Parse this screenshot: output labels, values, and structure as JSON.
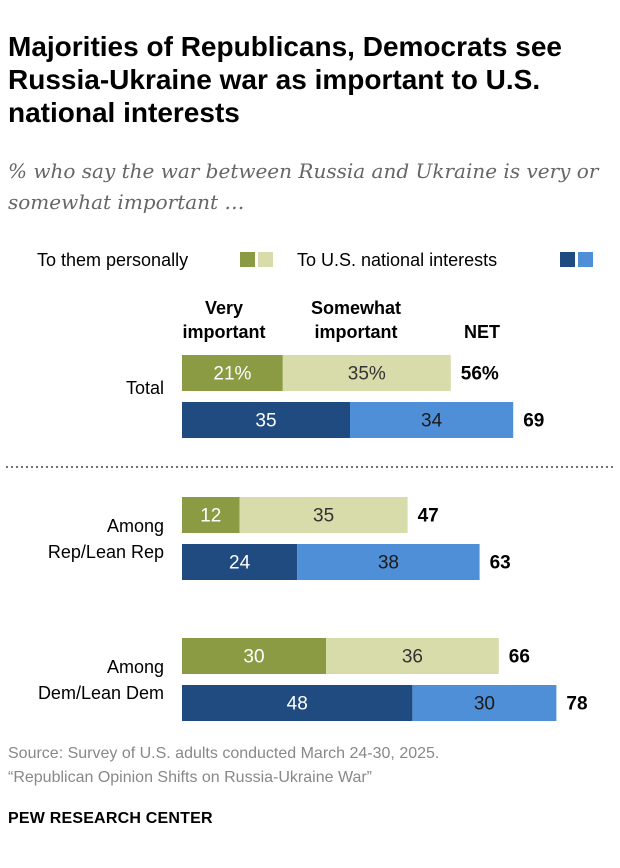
{
  "title": "Majorities of Republicans, Democrats see Russia-Ukraine war as important to U.S. national interests",
  "subtitle": "% who say the war between Russia and Ukraine is very or somewhat important …",
  "legend": {
    "personal_label": "To them personally",
    "national_label": "To U.S. national interests"
  },
  "column_headers": {
    "very_line1": "Very",
    "very_line2": "important",
    "somewhat_line1": "Somewhat",
    "somewhat_line2": "important",
    "net": "NET"
  },
  "colors": {
    "personal_very": "#8b9b44",
    "personal_somewhat": "#d8dcab",
    "national_very": "#1f4b80",
    "national_somewhat": "#4e8fd8",
    "separator": "#444444"
  },
  "chart_data": {
    "type": "bar",
    "orientation": "horizontal",
    "stacked": true,
    "series": [
      {
        "name": "Very important",
        "measure": "To them personally",
        "values": [
          21,
          12,
          30
        ]
      },
      {
        "name": "Somewhat important",
        "measure": "To them personally",
        "values": [
          35,
          35,
          36
        ]
      },
      {
        "name": "Very important",
        "measure": "To U.S. national interests",
        "values": [
          35,
          24,
          48
        ]
      },
      {
        "name": "Somewhat important",
        "measure": "To U.S. national interests",
        "values": [
          34,
          38,
          30
        ]
      }
    ],
    "groups": [
      {
        "label_lines": [
          "Total"
        ],
        "personal": {
          "very": 21,
          "very_label": "21%",
          "somewhat": 35,
          "somewhat_label": "35%",
          "net": 56,
          "net_label": "56%"
        },
        "national": {
          "very": 35,
          "very_label": "35",
          "somewhat": 34,
          "somewhat_label": "34",
          "net": 69,
          "net_label": "69"
        }
      },
      {
        "label_lines": [
          "Among",
          "Rep/Lean Rep"
        ],
        "personal": {
          "very": 12,
          "very_label": "12",
          "somewhat": 35,
          "somewhat_label": "35",
          "net": 47,
          "net_label": "47"
        },
        "national": {
          "very": 24,
          "very_label": "24",
          "somewhat": 38,
          "somewhat_label": "38",
          "net": 63,
          "net_label": "63"
        }
      },
      {
        "label_lines": [
          "Among",
          "Dem/Lean Dem"
        ],
        "personal": {
          "very": 30,
          "very_label": "30",
          "somewhat": 36,
          "somewhat_label": "36",
          "net": 66,
          "net_label": "66"
        },
        "national": {
          "very": 48,
          "very_label": "48",
          "somewhat": 30,
          "somewhat_label": "30",
          "net": 78,
          "net_label": "78"
        }
      }
    ],
    "grid": false,
    "legend_position": "top"
  },
  "source": {
    "line1": "Source: Survey of U.S. adults conducted March 24-30, 2025.",
    "line2": "“Republican Opinion Shifts on Russia-Ukraine War”"
  },
  "brand": "PEW RESEARCH CENTER"
}
